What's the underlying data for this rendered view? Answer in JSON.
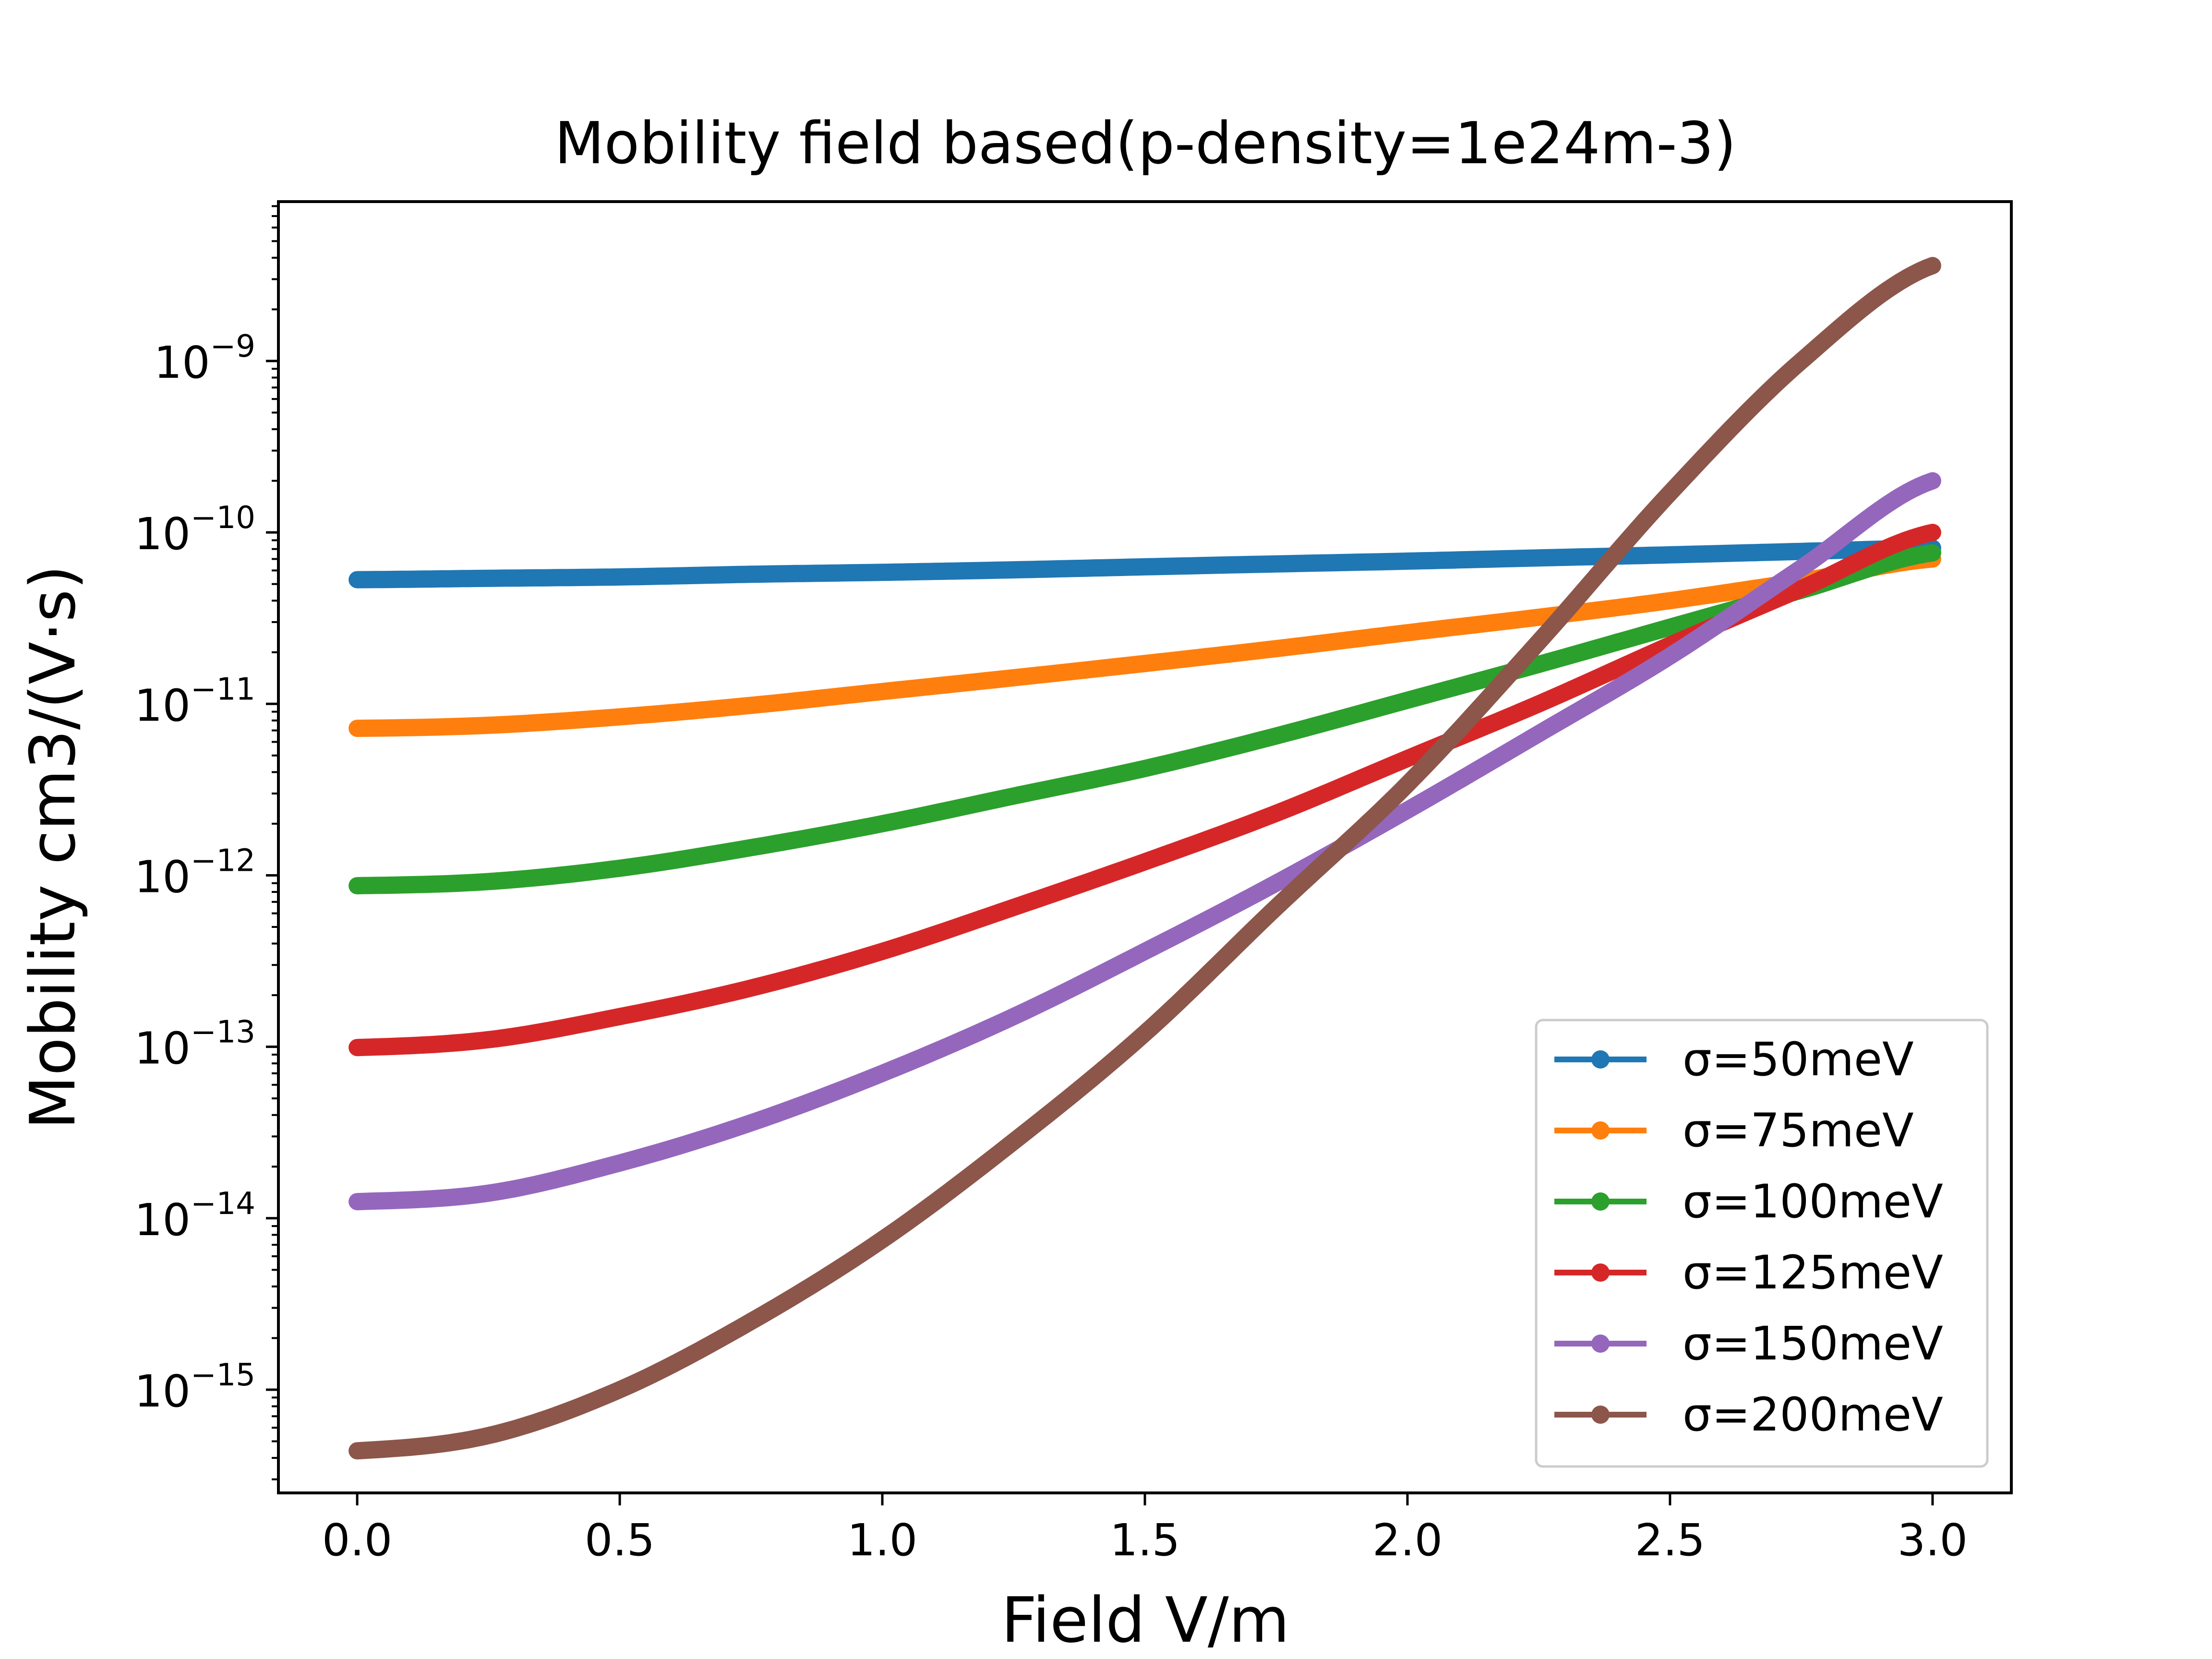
{
  "chart_data": {
    "type": "line",
    "title": "Mobility field based(p-density=1e24m-3)",
    "xlabel": "Field V/m",
    "ylabel": "Mobility cm3/(V·s)",
    "xlim": [
      -0.15,
      3.15
    ],
    "ylim": [
      2.5e-16,
      8.5e-09
    ],
    "yscale": "log",
    "xticks": [
      0.0,
      0.5,
      1.0,
      1.5,
      2.0,
      2.5,
      3.0
    ],
    "xtick_labels": [
      "0.0",
      "0.5",
      "1.0",
      "1.5",
      "2.0",
      "2.5",
      "3.0"
    ],
    "yticks": [
      {
        "value": 1e-15,
        "base": "10",
        "exp": "−15"
      },
      {
        "value": 1e-14,
        "base": "10",
        "exp": "−14"
      },
      {
        "value": 1e-13,
        "base": "10",
        "exp": "−13"
      },
      {
        "value": 1e-12,
        "base": "10",
        "exp": "−12"
      },
      {
        "value": 1e-11,
        "base": "10",
        "exp": "−11"
      },
      {
        "value": 1e-10,
        "base": "10",
        "exp": "−10"
      },
      {
        "value": 1e-09,
        "base": "10",
        "exp": "−9"
      }
    ],
    "grid": false,
    "legend_position": "lower-right",
    "x": [
      0.0,
      0.25,
      0.5,
      0.75,
      1.0,
      1.25,
      1.5,
      1.75,
      2.0,
      2.25,
      2.5,
      2.75,
      3.0
    ],
    "series": [
      {
        "name": "σ=50meV",
        "color": "#1f77b4",
        "values": [
          5.3e-11,
          5.4e-11,
          5.5e-11,
          5.7e-11,
          5.85e-11,
          6.05e-11,
          6.3e-11,
          6.55e-11,
          6.8e-11,
          7.1e-11,
          7.4e-11,
          7.75e-11,
          8.1e-11
        ]
      },
      {
        "name": "σ=75meV",
        "color": "#ff7f0e",
        "values": [
          7.2e-12,
          7.5e-12,
          8.4e-12,
          9.8e-12,
          1.18e-11,
          1.42e-11,
          1.72e-11,
          2.1e-11,
          2.6e-11,
          3.2e-11,
          4e-11,
          5.2e-11,
          7e-11
        ]
      },
      {
        "name": "σ=100meV",
        "color": "#2ca02c",
        "values": [
          8.7e-13,
          9.2e-13,
          1.1e-12,
          1.45e-12,
          2e-12,
          2.9e-12,
          4.2e-12,
          6.5e-12,
          1.05e-11,
          1.7e-11,
          2.8e-11,
          4.6e-11,
          7.6e-11
        ]
      },
      {
        "name": "σ=125meV",
        "color": "#d62728",
        "values": [
          9.9e-14,
          1.1e-13,
          1.5e-13,
          2.2e-13,
          3.6e-13,
          6.5e-13,
          1.2e-12,
          2.3e-12,
          4.8e-12,
          1e-11,
          2.2e-11,
          4.7e-11,
          1e-10
        ]
      },
      {
        "name": "σ=150meV",
        "color": "#9467bd",
        "values": [
          1.25e-14,
          1.4e-14,
          2.1e-14,
          3.6e-14,
          7e-14,
          1.5e-13,
          3.6e-13,
          9e-13,
          2.4e-12,
          6.7e-12,
          1.9e-11,
          6.2e-11,
          2e-10
        ]
      },
      {
        "name": "σ=200meV",
        "color": "#8c564b",
        "values": [
          4.4e-16,
          5.4e-16,
          1e-15,
          2.5e-15,
          7.5e-15,
          2.8e-14,
          1.2e-13,
          6.5e-13,
          3.4e-12,
          2.3e-11,
          1.7e-10,
          1e-09,
          3.6e-09
        ]
      }
    ]
  }
}
